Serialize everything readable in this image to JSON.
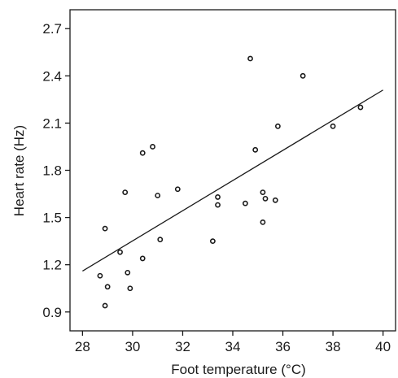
{
  "chart_data": {
    "type": "scatter",
    "xlabel": "Foot temperature (°C)",
    "ylabel": "Heart rate (Hz)",
    "xlim": [
      27.5,
      40.5
    ],
    "ylim": [
      0.78,
      2.82
    ],
    "x_ticks": [
      28,
      30,
      32,
      34,
      36,
      38,
      40
    ],
    "x_tick_labels": [
      "28",
      "30",
      "32",
      "34",
      "36",
      "38",
      "40"
    ],
    "y_ticks": [
      0.9,
      1.2,
      1.5,
      1.8,
      2.1,
      2.4,
      2.7
    ],
    "y_tick_labels": [
      "0.9",
      "1.2",
      "1.5",
      "1.8",
      "2.1",
      "2.4",
      "2.7"
    ],
    "grid": false,
    "legend": "none",
    "colors": {
      "ink": "#1a1a1a",
      "background": "#ffffff"
    },
    "marker": "hollow-circle",
    "series": [
      {
        "points": [
          {
            "x": 28.7,
            "y": 1.13
          },
          {
            "x": 28.9,
            "y": 0.94
          },
          {
            "x": 29.0,
            "y": 1.06
          },
          {
            "x": 28.9,
            "y": 1.43
          },
          {
            "x": 29.5,
            "y": 1.28
          },
          {
            "x": 29.8,
            "y": 1.15
          },
          {
            "x": 29.9,
            "y": 1.05
          },
          {
            "x": 29.7,
            "y": 1.66
          },
          {
            "x": 30.4,
            "y": 1.24
          },
          {
            "x": 30.4,
            "y": 1.91
          },
          {
            "x": 30.8,
            "y": 1.95
          },
          {
            "x": 31.0,
            "y": 1.64
          },
          {
            "x": 31.1,
            "y": 1.36
          },
          {
            "x": 31.8,
            "y": 1.68
          },
          {
            "x": 33.2,
            "y": 1.35
          },
          {
            "x": 33.4,
            "y": 1.63
          },
          {
            "x": 33.4,
            "y": 1.58
          },
          {
            "x": 34.5,
            "y": 1.59
          },
          {
            "x": 34.7,
            "y": 2.51
          },
          {
            "x": 34.9,
            "y": 1.93
          },
          {
            "x": 35.2,
            "y": 1.66
          },
          {
            "x": 35.3,
            "y": 1.62
          },
          {
            "x": 35.7,
            "y": 1.61
          },
          {
            "x": 35.2,
            "y": 1.47
          },
          {
            "x": 35.8,
            "y": 2.08
          },
          {
            "x": 36.8,
            "y": 2.4
          },
          {
            "x": 38.0,
            "y": 2.08
          },
          {
            "x": 39.1,
            "y": 2.2
          }
        ]
      }
    ],
    "trend_line": {
      "x": [
        28.0,
        40.0
      ],
      "y": [
        1.16,
        2.31
      ]
    }
  }
}
